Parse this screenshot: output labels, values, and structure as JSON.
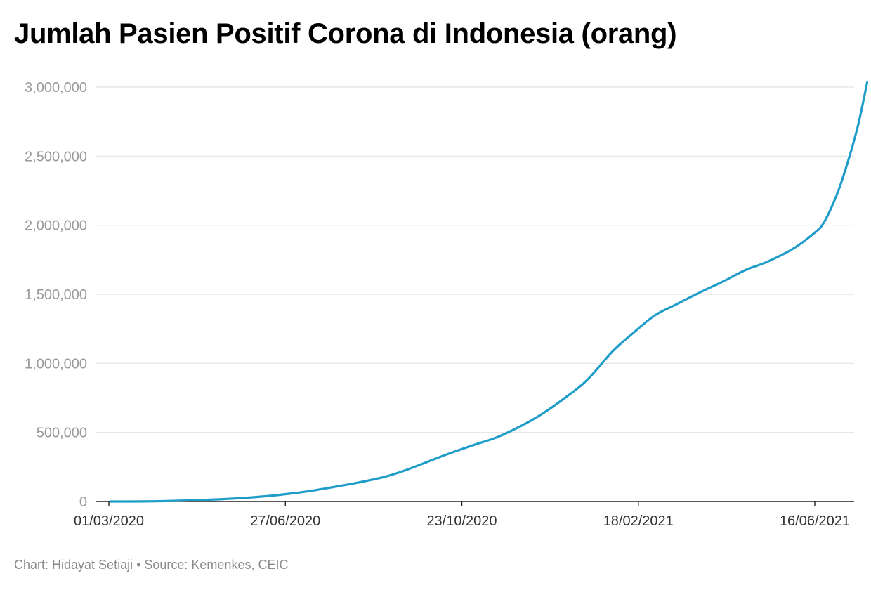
{
  "chart_data": {
    "type": "line",
    "title": "Jumlah Pasien Positif Corona di Indonesia (orang)",
    "xlabel": "",
    "ylabel": "",
    "credit": "Chart: Hidayat Setiaji • Source: Kemenkes, CEIC",
    "ylim": [
      0,
      3000000
    ],
    "yticks": [
      {
        "value": 0,
        "label": "0"
      },
      {
        "value": 500000,
        "label": "500,000"
      },
      {
        "value": 1000000,
        "label": "1,000,000"
      },
      {
        "value": 1500000,
        "label": "1,500,000"
      },
      {
        "value": 2000000,
        "label": "2,000,000"
      },
      {
        "value": 2500000,
        "label": "2,500,000"
      },
      {
        "value": 3000000,
        "label": "3,000,000"
      }
    ],
    "xticks": [
      {
        "date": "2020-03-01",
        "label": "01/03/2020"
      },
      {
        "date": "2020-06-27",
        "label": "27/06/2020"
      },
      {
        "date": "2020-10-23",
        "label": "23/10/2020"
      },
      {
        "date": "2021-02-18",
        "label": "18/02/2021"
      },
      {
        "date": "2021-06-16",
        "label": "16/06/2021"
      }
    ],
    "grid": true,
    "line_color": "#1f9dc9",
    "series": [
      {
        "x": [
          "2020-03-02",
          "2020-03-15",
          "2020-04-01",
          "2020-04-15",
          "2020-05-01",
          "2020-05-15",
          "2020-06-01",
          "2020-06-15",
          "2020-07-01",
          "2020-07-15",
          "2020-08-01",
          "2020-08-15",
          "2020-09-01",
          "2020-09-15",
          "2020-10-01",
          "2020-10-15",
          "2020-11-01",
          "2020-11-15",
          "2020-12-01",
          "2020-12-15",
          "2021-01-01",
          "2021-01-15",
          "2021-02-01",
          "2021-02-15",
          "2021-03-01",
          "2021-03-15",
          "2021-04-01",
          "2021-04-15",
          "2021-05-01",
          "2021-05-15",
          "2021-06-01",
          "2021-06-15",
          "2021-06-22",
          "2021-07-01",
          "2021-07-08",
          "2021-07-15",
          "2021-07-21"
        ],
        "y": [
          2,
          117,
          1677,
          5136,
          10551,
          16496,
          26940,
          39294,
          57770,
          78572,
          109936,
          137468,
          177571,
          225030,
          291182,
          349160,
          412784,
          463007,
          543975,
          629429,
          758473,
          882418,
          1089308,
          1223930,
          1347026,
          1425044,
          1517854,
          1589359,
          1677274,
          1734285,
          1826527,
          1937652,
          2018113,
          2228938,
          2455912,
          2726803,
          3033339
        ]
      }
    ]
  }
}
